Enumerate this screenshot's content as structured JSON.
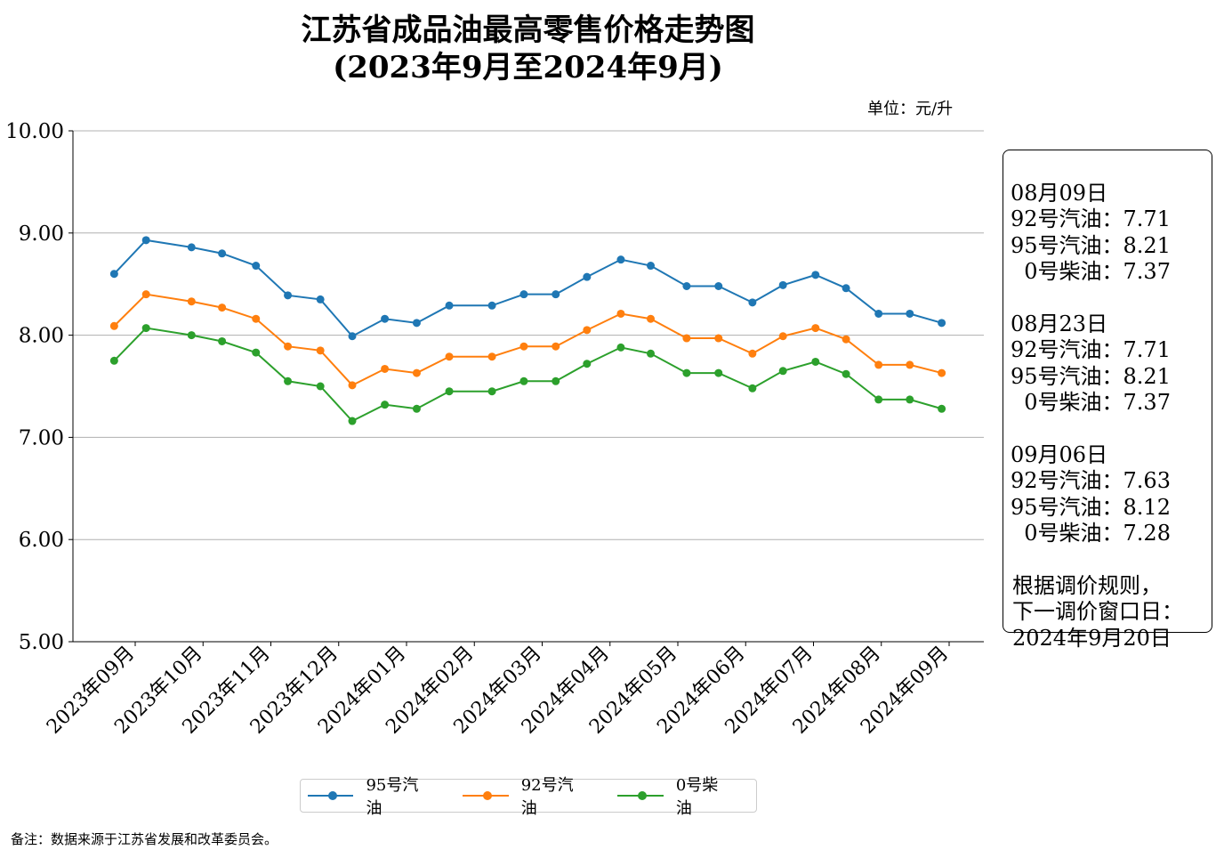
{
  "chart_data": {
    "type": "line",
    "title": "江苏省成品油最高零售价格走势图",
    "subtitle": "(2023年9月至2024年9月)",
    "unit": "单位：元/升",
    "ylim": [
      5,
      10
    ],
    "yticks": [
      "5.00",
      "6.00",
      "7.00",
      "8.00",
      "9.00",
      "10.00"
    ],
    "xticks": [
      "2023年09月",
      "2023年10月",
      "2023年11月",
      "2023年12月",
      "2024年01月",
      "2024年02月",
      "2024年03月",
      "2024年04月",
      "2024年05月",
      "2024年06月",
      "2024年07月",
      "2024年08月",
      "2024年09月"
    ],
    "x": [
      -0.31,
      0.16,
      0.83,
      1.28,
      1.78,
      2.25,
      2.73,
      3.2,
      3.68,
      4.15,
      4.63,
      5.26,
      5.73,
      6.2,
      6.66,
      7.16,
      7.6,
      8.13,
      8.6,
      9.1,
      9.55,
      10.03,
      10.48,
      10.96,
      11.42,
      11.89
    ],
    "grid": "y",
    "legend_position": "bottom",
    "series": [
      {
        "name": "95号汽油",
        "color": "#1f77b4",
        "values": [
          8.6,
          8.93,
          8.86,
          8.8,
          8.68,
          8.39,
          8.35,
          7.99,
          8.16,
          8.12,
          8.29,
          8.29,
          8.4,
          8.4,
          8.57,
          8.74,
          8.68,
          8.48,
          8.48,
          8.32,
          8.49,
          8.59,
          8.46,
          8.21,
          8.21,
          8.12
        ]
      },
      {
        "name": "92号汽油",
        "color": "#ff7f0e",
        "values": [
          8.09,
          8.4,
          8.33,
          8.27,
          8.16,
          7.89,
          7.85,
          7.51,
          7.67,
          7.63,
          7.79,
          7.79,
          7.89,
          7.89,
          8.05,
          8.21,
          8.16,
          7.97,
          7.97,
          7.82,
          7.99,
          8.07,
          7.96,
          7.71,
          7.71,
          7.63
        ]
      },
      {
        "name": "0号柴油",
        "color": "#2ca02c",
        "values": [
          7.75,
          8.07,
          8.0,
          7.94,
          7.83,
          7.55,
          7.5,
          7.16,
          7.32,
          7.28,
          7.45,
          7.45,
          7.55,
          7.55,
          7.72,
          7.88,
          7.82,
          7.63,
          7.63,
          7.48,
          7.65,
          7.74,
          7.62,
          7.37,
          7.37,
          7.28
        ]
      }
    ],
    "annotation": [
      "08月09日\n92号汽油：7.71\n95号汽油：8.21\n  0号柴油：7.37",
      "08月23日\n92号汽油：7.71\n95号汽油：8.21\n  0号柴油：7.37",
      "09月06日\n92号汽油：7.63\n95号汽油：8.12\n  0号柴油：7.28",
      "根据调价规则，\n下一调价窗口日：\n2024年9月20日"
    ],
    "footnote": "备注：数据来源于江苏省发展和改革委员会。"
  }
}
